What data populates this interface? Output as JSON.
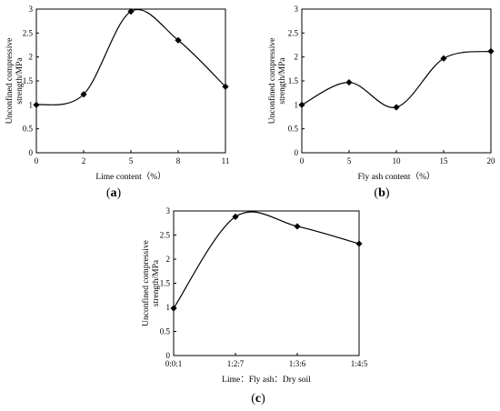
{
  "chart_data": [
    {
      "type": "line",
      "caption": "(a)",
      "xlabel": "Lime content（%）",
      "ylabel": "Unconfined compressive strength/MPa",
      "x_ticks": [
        "0",
        "2",
        "5",
        "8",
        "11"
      ],
      "y_ticks": [
        "0",
        "0.5",
        "1",
        "1.5",
        "2",
        "2.5",
        "3"
      ],
      "ylim": [
        0,
        3
      ],
      "categories": [
        "0",
        "2",
        "5",
        "8",
        "11"
      ],
      "values": [
        1.0,
        1.22,
        2.95,
        2.35,
        1.38
      ],
      "marker": "diamond",
      "line": "smooth"
    },
    {
      "type": "line",
      "caption": "(b)",
      "xlabel": "Fly ash content（%）",
      "ylabel": "Unconfined compressive strength/MPa",
      "x_ticks": [
        "0",
        "5",
        "10",
        "15",
        "20"
      ],
      "y_ticks": [
        "0",
        "0.5",
        "1",
        "1.5",
        "2",
        "2.5",
        "3"
      ],
      "ylim": [
        0,
        3
      ],
      "categories": [
        "0",
        "5",
        "10",
        "15",
        "20"
      ],
      "values": [
        1.0,
        1.47,
        0.95,
        1.97,
        2.12
      ],
      "marker": "diamond",
      "line": "smooth"
    },
    {
      "type": "line",
      "caption": "(c)",
      "xlabel": "Lime：Fly ash：Dry soil",
      "ylabel": "Unconfined compressive strength/MPa",
      "x_ticks": [
        "0:0:1",
        "1:2:7",
        "1:3:6",
        "1:4:5"
      ],
      "y_ticks": [
        "0",
        "0.5",
        "1",
        "1.5",
        "2",
        "2.5",
        "3"
      ],
      "ylim": [
        0,
        3
      ],
      "categories": [
        "0:0:1",
        "1:2:7",
        "1:3:6",
        "1:4:5"
      ],
      "values": [
        0.98,
        2.88,
        2.68,
        2.32
      ],
      "marker": "diamond",
      "line": "smooth"
    }
  ]
}
